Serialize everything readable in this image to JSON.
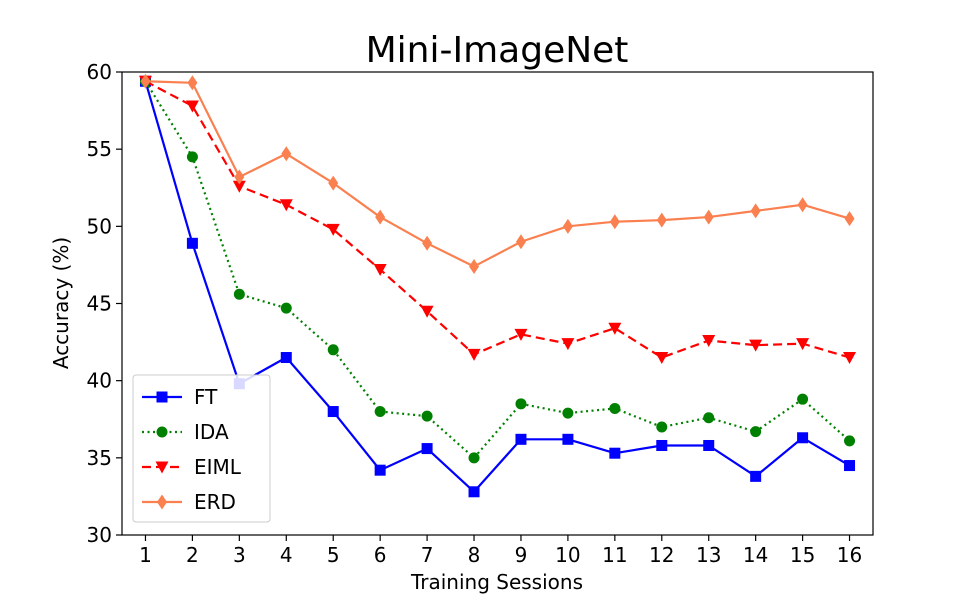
{
  "chart_data": {
    "type": "line",
    "title": "Mini-ImageNet",
    "xlabel": "Training Sessions",
    "ylabel": "Accuracy (%)",
    "x": [
      1,
      2,
      3,
      4,
      5,
      6,
      7,
      8,
      9,
      10,
      11,
      12,
      13,
      14,
      15,
      16
    ],
    "xlim": [
      0.5,
      16.5
    ],
    "ylim": [
      30,
      60
    ],
    "yticks": [
      30,
      35,
      40,
      45,
      50,
      55,
      60
    ],
    "grid": false,
    "legend_position": "lower-left",
    "series": [
      {
        "name": "FT",
        "color": "#0000ff",
        "line_style": "solid",
        "marker": "square",
        "values": [
          59.4,
          48.9,
          39.8,
          41.5,
          38.0,
          34.2,
          35.6,
          32.8,
          36.2,
          36.2,
          35.3,
          35.8,
          35.8,
          33.8,
          36.3,
          34.5
        ]
      },
      {
        "name": "IDA",
        "color": "#008000",
        "line_style": "dotted",
        "marker": "circle",
        "values": [
          59.4,
          54.5,
          45.6,
          44.7,
          42.0,
          38.0,
          37.7,
          35.0,
          38.5,
          37.9,
          38.2,
          37.0,
          37.6,
          36.7,
          38.8,
          36.1
        ]
      },
      {
        "name": "EIML",
        "color": "#ff0000",
        "line_style": "dashed",
        "marker": "triangle-down",
        "values": [
          59.4,
          57.8,
          52.6,
          51.4,
          49.8,
          47.2,
          44.5,
          41.7,
          43.0,
          42.4,
          43.4,
          41.5,
          42.6,
          42.3,
          42.4,
          41.5
        ]
      },
      {
        "name": "ERD",
        "color": "#fa8050",
        "line_style": "solid",
        "marker": "diamond",
        "values": [
          59.4,
          59.3,
          53.2,
          54.7,
          52.8,
          50.6,
          48.9,
          47.4,
          49.0,
          50.0,
          50.3,
          50.4,
          50.6,
          51.0,
          51.4,
          50.5
        ]
      }
    ]
  }
}
